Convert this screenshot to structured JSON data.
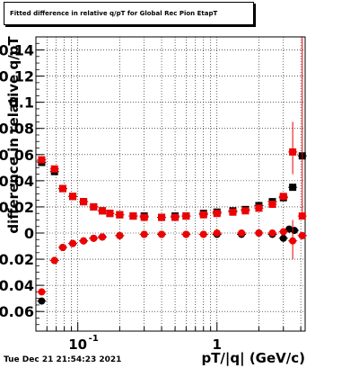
{
  "title": "Fitted difference in relative q/pT for Global Rec Pion EtapT",
  "timestamp": "Tue Dec 21 21:54:23 2021",
  "chart_data": {
    "type": "scatter",
    "title": "Fitted difference in relative q/pT for Global Rec Pion EtapT",
    "xlabel": "pT/|q| (GeV/c)",
    "ylabel": "difference in relative q/pT",
    "x_scale": "log",
    "xlim": [
      0.05,
      4.3
    ],
    "ylim": [
      -0.075,
      0.15
    ],
    "grid": true,
    "yticks": [
      {
        "v": 0.14,
        "label": "0.14"
      },
      {
        "v": 0.12,
        "label": "0.12"
      },
      {
        "v": 0.1,
        "label": "0.1"
      },
      {
        "v": 0.08,
        "label": "0.08"
      },
      {
        "v": 0.06,
        "label": "0.06"
      },
      {
        "v": 0.04,
        "label": "0.04"
      },
      {
        "v": 0.02,
        "label": "0.02"
      },
      {
        "v": 0,
        "label": "0"
      },
      {
        "v": -0.02,
        "label": "-0.02"
      },
      {
        "v": -0.04,
        "label": "-0.04"
      },
      {
        "v": -0.06,
        "label": "-0.06"
      }
    ],
    "xticks": [
      {
        "v": 0.1,
        "label": "10",
        "sup": "-1"
      },
      {
        "v": 1,
        "label": "1",
        "sup": ""
      }
    ],
    "series": [
      {
        "marker": "square",
        "color": "#000000",
        "points": [
          [
            0.055,
            0.054
          ],
          [
            0.068,
            0.047
          ],
          [
            0.078,
            0.034
          ],
          [
            0.092,
            0.028
          ],
          [
            0.11,
            0.024
          ],
          [
            0.13,
            0.02
          ],
          [
            0.15,
            0.017
          ],
          [
            0.17,
            0.015
          ],
          [
            0.2,
            0.014
          ],
          [
            0.25,
            0.013
          ],
          [
            0.3,
            0.013
          ],
          [
            0.4,
            0.012
          ],
          [
            0.5,
            0.013
          ],
          [
            0.6,
            0.013
          ],
          [
            0.8,
            0.015
          ],
          [
            1.0,
            0.016
          ],
          [
            1.3,
            0.017
          ],
          [
            1.6,
            0.018
          ],
          [
            2.0,
            0.021
          ],
          [
            2.5,
            0.024
          ],
          [
            3.0,
            0.027
          ],
          [
            3.5,
            0.035
          ],
          [
            4.1,
            0.059
          ]
        ]
      },
      {
        "marker": "circle",
        "color": "#000000",
        "points": [
          [
            0.055,
            -0.052
          ],
          [
            0.068,
            -0.021
          ],
          [
            0.078,
            -0.011
          ],
          [
            0.092,
            -0.008
          ],
          [
            0.11,
            -0.006
          ],
          [
            0.13,
            -0.004
          ],
          [
            0.15,
            -0.003
          ],
          [
            0.2,
            -0.002
          ],
          [
            0.3,
            -0.001
          ],
          [
            0.4,
            -0.001
          ],
          [
            0.6,
            -0.001
          ],
          [
            0.8,
            -0.001
          ],
          [
            1.0,
            -0.001
          ],
          [
            1.5,
            -0.001
          ],
          [
            2.0,
            0.0
          ],
          [
            2.5,
            -0.001
          ],
          [
            3.0,
            -0.004
          ],
          [
            3.3,
            0.003
          ],
          [
            3.6,
            0.002
          ],
          [
            4.1,
            -0.002
          ]
        ]
      },
      {
        "marker": "square",
        "color": "#ee0000",
        "points": [
          [
            0.055,
            0.056
          ],
          [
            0.068,
            0.049
          ],
          [
            0.078,
            0.034
          ],
          [
            0.092,
            0.028
          ],
          [
            0.11,
            0.024
          ],
          [
            0.13,
            0.02
          ],
          [
            0.15,
            0.017
          ],
          [
            0.17,
            0.015
          ],
          [
            0.2,
            0.014
          ],
          [
            0.25,
            0.013
          ],
          [
            0.3,
            0.012
          ],
          [
            0.4,
            0.012
          ],
          [
            0.5,
            0.012
          ],
          [
            0.6,
            0.013
          ],
          [
            0.8,
            0.014
          ],
          [
            1.0,
            0.015
          ],
          [
            1.3,
            0.016
          ],
          [
            1.6,
            0.017
          ],
          [
            2.0,
            0.019
          ],
          [
            2.5,
            0.022
          ],
          [
            3.0,
            0.028
          ],
          [
            3.5,
            0.062
          ],
          [
            4.1,
            0.013
          ]
        ],
        "errorbars": [
          [
            4.1,
            0.015,
            0.15
          ],
          [
            3.5,
            0.045,
            0.085
          ]
        ]
      },
      {
        "marker": "circle",
        "color": "#ee0000",
        "points": [
          [
            0.055,
            -0.045
          ],
          [
            0.068,
            -0.021
          ],
          [
            0.078,
            -0.011
          ],
          [
            0.092,
            -0.008
          ],
          [
            0.11,
            -0.006
          ],
          [
            0.13,
            -0.004
          ],
          [
            0.15,
            -0.003
          ],
          [
            0.2,
            -0.002
          ],
          [
            0.3,
            -0.001
          ],
          [
            0.4,
            -0.001
          ],
          [
            0.6,
            -0.001
          ],
          [
            0.8,
            -0.001
          ],
          [
            1.0,
            0.0
          ],
          [
            1.5,
            0.0
          ],
          [
            2.0,
            0.0
          ],
          [
            2.5,
            0.0
          ],
          [
            3.0,
            0.001
          ],
          [
            3.5,
            -0.006
          ],
          [
            4.1,
            -0.002
          ]
        ],
        "errorbars": [
          [
            3.5,
            -0.02,
            0.01
          ]
        ]
      }
    ]
  }
}
